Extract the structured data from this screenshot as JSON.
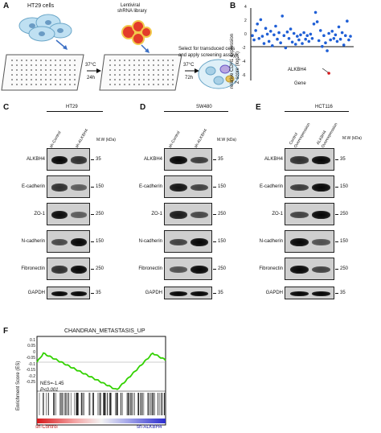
{
  "panel_a": {
    "label": "A",
    "cells_label": "HT29 cells",
    "library_label_1": "Lentiviral",
    "library_label_2": "shRNA library",
    "temp1": "37°C",
    "time1": "24h",
    "temp2": "37°C",
    "time2": "72h",
    "select_text_1": "Select for transduced cells",
    "select_text_2": "and apply screening assays"
  },
  "panel_b": {
    "label": "B",
    "ylabel_1": "relative CDH1 expression",
    "ylabel_2": "Z score (log2x)",
    "xlabel": "Gene",
    "annotation": "ALKBH4",
    "yticks": [
      "4",
      "2",
      "0",
      "-2",
      "-4",
      "-6"
    ]
  },
  "chart_data": {
    "type": "scatter",
    "xlabel": "Gene",
    "ylabel": "relative CDH1 expression Z score (log2x)",
    "ylim": [
      -6,
      4
    ],
    "yticks": [
      4,
      2,
      0,
      -2,
      -4,
      -6
    ],
    "annotation": {
      "label": "ALKBH4",
      "y": -5.0
    },
    "series": [
      {
        "color": "#1f5fd6",
        "points": [
          [
            1,
            0.2
          ],
          [
            2,
            -0.4
          ],
          [
            3,
            0.9
          ],
          [
            4,
            1.8
          ],
          [
            5,
            -0.2
          ],
          [
            6,
            2.4
          ],
          [
            7,
            0.1
          ],
          [
            8,
            -0.9
          ],
          [
            9,
            1.2
          ],
          [
            10,
            0.4
          ],
          [
            11,
            -0.6
          ],
          [
            12,
            0.8
          ],
          [
            13,
            -1.2
          ],
          [
            14,
            0.3
          ],
          [
            15,
            1.5
          ],
          [
            16,
            -0.3
          ],
          [
            17,
            0.6
          ],
          [
            18,
            -0.8
          ],
          [
            19,
            2.9
          ],
          [
            20,
            0.2
          ],
          [
            21,
            -1.5
          ],
          [
            22,
            0.7
          ],
          [
            23,
            -0.2
          ],
          [
            24,
            1.1
          ],
          [
            25,
            -0.7
          ],
          [
            26,
            0.5
          ],
          [
            27,
            -1.0
          ],
          [
            28,
            0.1
          ],
          [
            29,
            -0.4
          ],
          [
            30,
            0.3
          ],
          [
            31,
            -0.9
          ],
          [
            32,
            0.6
          ],
          [
            33,
            -0.3
          ],
          [
            34,
            0.2
          ],
          [
            35,
            -0.6
          ],
          [
            36,
            0.4
          ],
          [
            37,
            -0.2
          ],
          [
            38,
            1.8
          ],
          [
            39,
            3.4
          ],
          [
            40,
            2.1
          ],
          [
            41,
            -0.5
          ],
          [
            42,
            0.9
          ],
          [
            43,
            -1.3
          ],
          [
            44,
            0.2
          ],
          [
            45,
            -0.8
          ],
          [
            46,
            -1.9
          ],
          [
            47,
            0.5
          ],
          [
            48,
            -0.4
          ],
          [
            49,
            0.8
          ],
          [
            50,
            -0.2
          ],
          [
            51,
            0.3
          ],
          [
            52,
            -0.6
          ],
          [
            53,
            1.4
          ],
          [
            54,
            -0.3
          ],
          [
            55,
            0.6
          ],
          [
            56,
            -1.1
          ],
          [
            57,
            0.2
          ],
          [
            58,
            2.2
          ],
          [
            59,
            -0.4
          ],
          [
            60,
            0.1
          ]
        ]
      },
      {
        "color": "#d7191c",
        "points": [
          [
            47,
            -5.0
          ]
        ]
      }
    ]
  },
  "panel_c": {
    "label": "C",
    "cell_line": "HT29",
    "lanes": [
      "sh-Control",
      "sh-ALKBH4"
    ],
    "mw_header": "M.W (kDa)",
    "rows": [
      {
        "protein": "ALKBH4",
        "mw": "35"
      },
      {
        "protein": "E-cadherin",
        "mw": "150"
      },
      {
        "protein": "ZO-1",
        "mw": "250"
      },
      {
        "protein": "N-cadherin",
        "mw": "150"
      },
      {
        "protein": "Fibronectin",
        "mw": "250"
      },
      {
        "protein": "GAPDH",
        "mw": "35"
      }
    ]
  },
  "panel_d": {
    "label": "D",
    "cell_line": "SW480",
    "lanes": [
      "sh-Control",
      "sh-ALKBH4"
    ],
    "mw_header": "M.W (kDa)",
    "rows": [
      {
        "protein": "ALKBH4",
        "mw": "35"
      },
      {
        "protein": "E-cadherin",
        "mw": "150"
      },
      {
        "protein": "ZO-1",
        "mw": "250"
      },
      {
        "protein": "N-cadherin",
        "mw": "150"
      },
      {
        "protein": "Fibronectin",
        "mw": "250"
      },
      {
        "protein": "GAPDH",
        "mw": "35"
      }
    ]
  },
  "panel_e": {
    "label": "E",
    "cell_line": "HCT116",
    "lanes": [
      "Control Overexpression",
      "ALKBH4 Overexpression"
    ],
    "lane_lines": [
      [
        "Control",
        "Overexpression"
      ],
      [
        "ALKBH4",
        "Overexpression"
      ]
    ],
    "mw_header": "M.W (kDa)",
    "rows": [
      {
        "protein": "ALKBH4",
        "mw": "35"
      },
      {
        "protein": "E-cadherin",
        "mw": "150"
      },
      {
        "protein": "ZO-1",
        "mw": "250"
      },
      {
        "protein": "N-cadherin",
        "mw": "150"
      },
      {
        "protein": "Fibronectin",
        "mw": "250"
      },
      {
        "protein": "GAPDH",
        "mw": "35"
      }
    ]
  },
  "panel_f": {
    "label": "F",
    "title": "CHANDRAN_METASTASIS_UP",
    "ylabel": "Enrichment Score (ES)",
    "yticks": [
      "0.1",
      "0.05",
      "0",
      "-0.05",
      "-0.1",
      "-0.15",
      "-0.2",
      "-0.25"
    ],
    "nes_text": "NES=-1.45",
    "p_text": "P<0.001",
    "left_group": "sh-Control",
    "right_group": "sh-ALKBH4"
  }
}
